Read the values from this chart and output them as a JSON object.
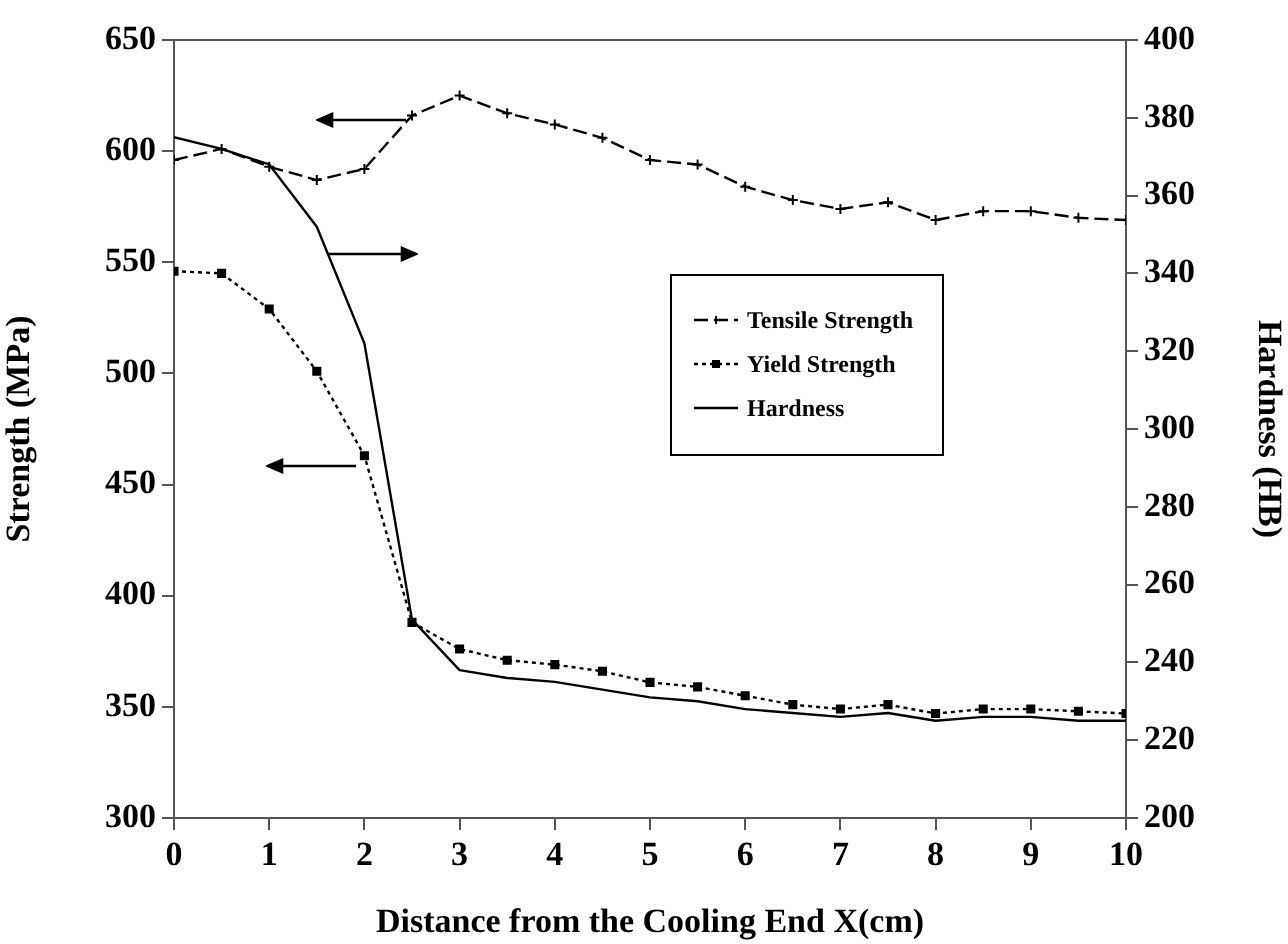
{
  "chart_data": {
    "type": "line",
    "xlabel": "Distance from the Cooling End X(cm)",
    "ylabel": "Strength (MPa)",
    "y2label": "Hardness (HB)",
    "x": [
      0,
      0.5,
      1,
      1.5,
      2,
      2.5,
      3,
      3.5,
      4,
      4.5,
      5,
      5.5,
      6,
      6.5,
      7,
      7.5,
      8,
      8.5,
      9,
      9.5,
      10
    ],
    "series": [
      {
        "name": "Tensile Strength",
        "color": "#000000",
        "marker": "cross",
        "line_style": "dashed",
        "values": [
          596,
          601,
          593,
          587,
          592,
          616,
          625,
          617,
          612,
          606,
          596,
          594,
          584,
          578,
          574,
          577,
          569,
          573,
          573,
          570,
          569
        ]
      },
      {
        "name": "Yield Strength",
        "color": "#000000",
        "marker": "square",
        "line_style": "dotted",
        "values": [
          546,
          545,
          529,
          501,
          463,
          388,
          376,
          371,
          369,
          366,
          361,
          359,
          355,
          351,
          349,
          351,
          347,
          349,
          349,
          348,
          347
        ]
      },
      {
        "name": "Hardness",
        "color": "#000000",
        "marker": "none",
        "line_style": "solid",
        "axis": "y2",
        "values": [
          375,
          372,
          368,
          352,
          322,
          251,
          238,
          236,
          235,
          233,
          231,
          230,
          228,
          227,
          226,
          227,
          225,
          226,
          226,
          225,
          225
        ]
      }
    ],
    "xlim": [
      0,
      10
    ],
    "xticks": [
      0,
      1,
      2,
      3,
      4,
      5,
      6,
      7,
      8,
      9,
      10
    ],
    "ylim": [
      300,
      650
    ],
    "yticks": [
      300,
      350,
      400,
      450,
      500,
      550,
      600,
      650
    ],
    "y2lim": [
      200,
      400
    ],
    "y2ticks": [
      200,
      220,
      240,
      260,
      280,
      300,
      320,
      340,
      360,
      380,
      400
    ],
    "grid": false,
    "legend": "right"
  }
}
